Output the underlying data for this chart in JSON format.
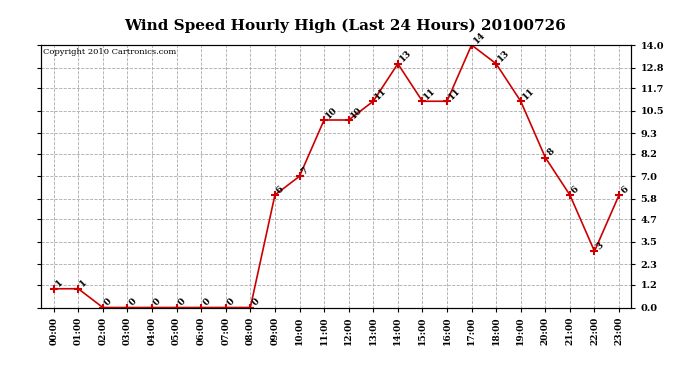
{
  "title": "Wind Speed Hourly High (Last 24 Hours) 20100726",
  "copyright": "Copyright 2010 Cartronics.com",
  "hours": [
    "00:00",
    "01:00",
    "02:00",
    "03:00",
    "04:00",
    "05:00",
    "06:00",
    "07:00",
    "08:00",
    "09:00",
    "10:00",
    "11:00",
    "12:00",
    "13:00",
    "14:00",
    "15:00",
    "16:00",
    "17:00",
    "18:00",
    "19:00",
    "20:00",
    "21:00",
    "22:00",
    "23:00"
  ],
  "values": [
    1,
    1,
    0,
    0,
    0,
    0,
    0,
    0,
    0,
    6,
    7,
    10,
    10,
    11,
    13,
    11,
    11,
    14,
    13,
    11,
    8,
    6,
    3,
    6
  ],
  "line_color": "#cc0000",
  "marker_color": "#cc0000",
  "bg_color": "#ffffff",
  "grid_color": "#aaaaaa",
  "title_fontsize": 11,
  "ylim": [
    0.0,
    14.0
  ],
  "yticks": [
    0.0,
    1.2,
    2.3,
    3.5,
    4.7,
    5.8,
    7.0,
    8.2,
    9.3,
    10.5,
    11.7,
    12.8,
    14.0
  ]
}
